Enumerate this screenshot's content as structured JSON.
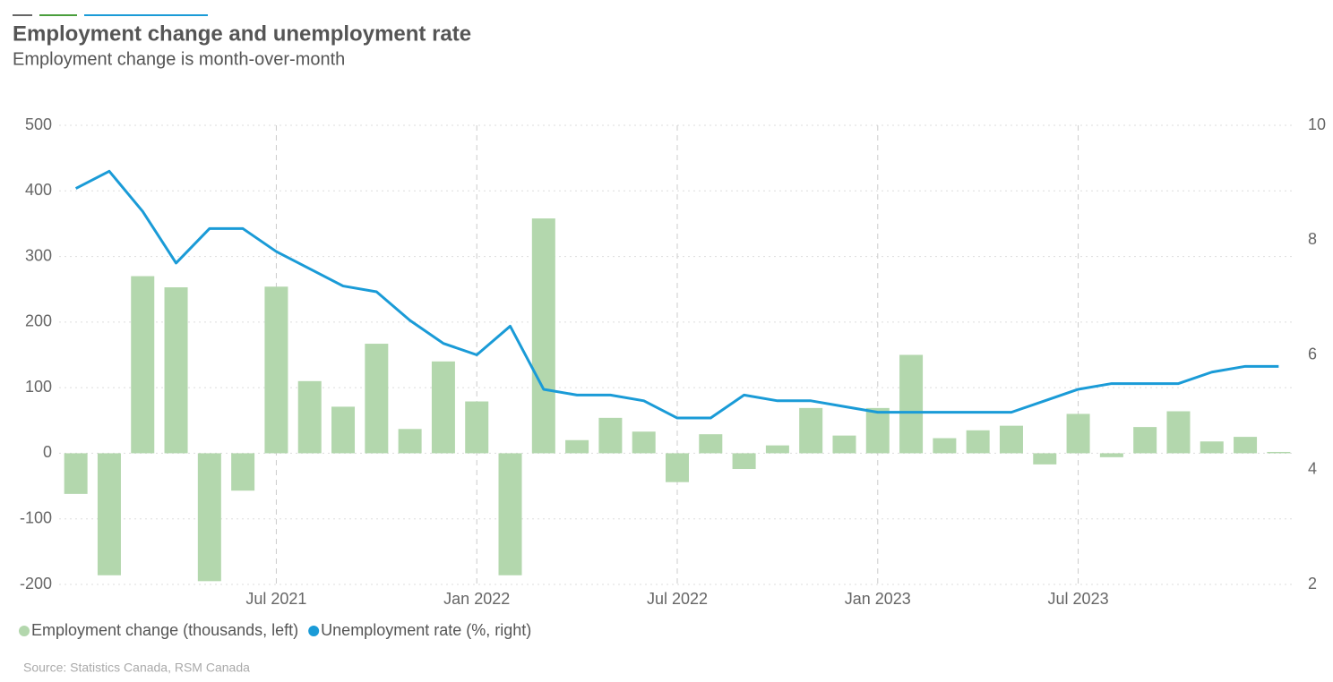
{
  "chart_data": {
    "type": "bar_line",
    "title": "Employment change and unemployment rate",
    "subtitle": "Employment change is month-over-month",
    "source": "Source: Statistics Canada, RSM Canada",
    "categories": [
      null,
      null,
      null,
      null,
      null,
      null,
      "Jul 2021",
      null,
      null,
      null,
      null,
      null,
      "Jan 2022",
      null,
      null,
      null,
      null,
      null,
      "Jul 2022",
      null,
      null,
      null,
      null,
      null,
      "Jan 2023",
      null,
      null,
      null,
      null,
      null,
      "Jul 2023",
      null,
      null,
      null,
      null,
      null,
      null
    ],
    "series": [
      {
        "name": "Employment change (thousands, left)",
        "color": "#b3d7ad",
        "axis": "y",
        "values": [
          -62,
          -186,
          270,
          253,
          -195,
          -57,
          254,
          110,
          71,
          167,
          37,
          140,
          79,
          -186,
          358,
          20,
          54,
          33,
          -44,
          29,
          -24,
          12,
          69,
          27,
          69,
          150,
          23,
          35,
          42,
          -17,
          60,
          -6,
          40,
          64,
          18,
          25,
          2
        ]
      },
      {
        "name": "Unemployment rate (%, right)",
        "color": "#1a9bd7",
        "axis": "y2",
        "values": [
          8.9,
          9.2,
          8.5,
          7.6,
          8.2,
          8.2,
          7.8,
          7.5,
          7.2,
          7.1,
          6.6,
          6.2,
          6.0,
          6.5,
          5.4,
          5.3,
          5.3,
          5.2,
          4.9,
          4.9,
          5.3,
          5.2,
          5.2,
          5.1,
          5.0,
          5.0,
          5.0,
          5.0,
          5.0,
          5.2,
          5.4,
          5.5,
          5.5,
          5.5,
          5.7,
          5.8,
          5.8
        ]
      }
    ],
    "ylim": [
      -200,
      500
    ],
    "yticks": [
      -200,
      -100,
      0,
      100,
      200,
      300,
      400,
      500
    ],
    "y2lim": [
      2,
      10
    ],
    "y2ticks": [
      2,
      4,
      6,
      8,
      10
    ],
    "grid": true,
    "legend": "bottom-left"
  }
}
